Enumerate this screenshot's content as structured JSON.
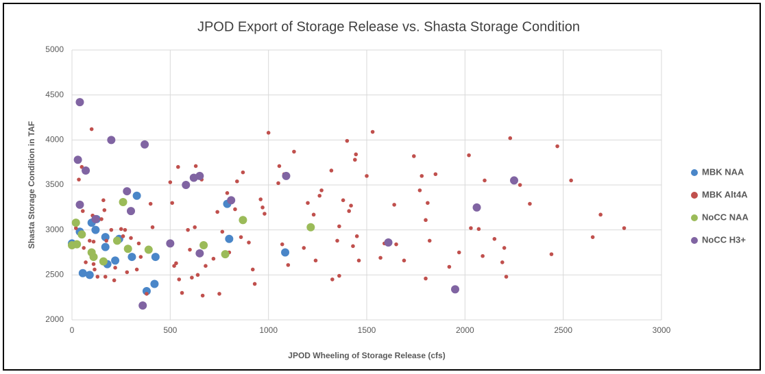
{
  "chart_data": {
    "type": "scatter",
    "title": "JPOD Export of Storage Release vs. Shasta Storage Condition",
    "x_label": "JPOD Wheeling of Storage Release (cfs)",
    "y_label": "Shasta Storage Condition in TAF",
    "xlim": [
      0,
      3000
    ],
    "xticks": [
      0,
      500,
      1000,
      1500,
      2000,
      2500,
      3000
    ],
    "ylim": [
      2000,
      5000
    ],
    "yticks": [
      2000,
      2500,
      3000,
      3500,
      4000,
      4500,
      5000
    ],
    "grid": true,
    "legend": "right",
    "series": [
      {
        "name": "MBK NAA",
        "color": "#4a86c8",
        "marker_radius": 6,
        "x": [
          0,
          40,
          55,
          90,
          100,
          120,
          125,
          170,
          170,
          180,
          220,
          240,
          305,
          330,
          380,
          420,
          425,
          790,
          800,
          1085
        ],
        "values": [
          2850,
          2980,
          2520,
          2500,
          3080,
          3000,
          3120,
          2920,
          2810,
          2620,
          2660,
          2900,
          2700,
          3380,
          2320,
          2400,
          2700,
          3290,
          2900,
          2750
        ]
      },
      {
        "name": "MBK Alt4A",
        "color": "#c0504d",
        "marker_radius": 2.8,
        "x": [
          20,
          35,
          50,
          55,
          60,
          70,
          90,
          100,
          105,
          110,
          110,
          115,
          130,
          150,
          160,
          165,
          170,
          175,
          200,
          215,
          220,
          250,
          260,
          270,
          280,
          300,
          330,
          340,
          350,
          380,
          400,
          410,
          500,
          510,
          520,
          530,
          540,
          545,
          560,
          590,
          600,
          610,
          625,
          630,
          640,
          660,
          665,
          680,
          720,
          740,
          750,
          765,
          790,
          800,
          830,
          840,
          860,
          870,
          900,
          920,
          930,
          960,
          970,
          980,
          1000,
          1050,
          1055,
          1070,
          1080,
          1100,
          1130,
          1180,
          1200,
          1230,
          1240,
          1260,
          1270,
          1320,
          1325,
          1350,
          1360,
          1360,
          1380,
          1400,
          1410,
          1420,
          1430,
          1440,
          1445,
          1450,
          1460,
          1500,
          1530,
          1570,
          1590,
          1640,
          1650,
          1690,
          1740,
          1770,
          1780,
          1800,
          1800,
          1810,
          1820,
          1850,
          1920,
          1970,
          2020,
          2030,
          2070,
          2090,
          2100,
          2150,
          2190,
          2200,
          2210,
          2230,
          2280,
          2330,
          2440,
          2470,
          2540,
          2650,
          2690,
          2810
        ],
        "values": [
          3020,
          3560,
          3700,
          3210,
          2800,
          2640,
          2880,
          4120,
          3160,
          2870,
          2620,
          2560,
          2480,
          3120,
          3330,
          3220,
          2480,
          2880,
          3000,
          2440,
          2580,
          3010,
          2930,
          3000,
          2530,
          2910,
          2560,
          2850,
          2700,
          2290,
          3290,
          3030,
          3530,
          3300,
          2600,
          2630,
          3700,
          2450,
          2300,
          3000,
          2780,
          2470,
          3030,
          3710,
          2500,
          3560,
          2270,
          2600,
          2680,
          3200,
          2290,
          2980,
          3410,
          2750,
          3230,
          3540,
          2920,
          3640,
          2860,
          2560,
          2400,
          3340,
          3250,
          3180,
          4080,
          3520,
          3710,
          2840,
          3620,
          2610,
          3870,
          2800,
          3300,
          3170,
          2660,
          3380,
          3440,
          3660,
          2450,
          2880,
          2490,
          3040,
          3330,
          3990,
          3210,
          3270,
          2820,
          3780,
          3840,
          2930,
          2660,
          3600,
          4090,
          2690,
          2850,
          3280,
          2840,
          2660,
          3820,
          3440,
          3600,
          2460,
          3110,
          3300,
          2880,
          3620,
          2590,
          2750,
          3830,
          3020,
          3010,
          2710,
          3550,
          2900,
          2640,
          2800,
          2480,
          4020,
          3500,
          3290,
          2730,
          3930,
          3550,
          2920,
          3170,
          3020
        ]
      },
      {
        "name": "NoCC NAA",
        "color": "#9bbb59",
        "marker_radius": 6,
        "x": [
          0,
          20,
          25,
          50,
          100,
          110,
          160,
          230,
          260,
          285,
          390,
          670,
          780,
          870,
          1215
        ],
        "values": [
          2830,
          3080,
          2840,
          2950,
          2750,
          2700,
          2650,
          2880,
          3310,
          2790,
          2780,
          2830,
          2730,
          3110,
          3030
        ]
      },
      {
        "name": "NoCC H3+",
        "color": "#8064a2",
        "marker_radius": 6,
        "x": [
          40,
          30,
          70,
          40,
          200,
          370,
          280,
          300,
          120,
          360,
          500,
          580,
          620,
          650,
          650,
          810,
          1090,
          1610,
          1950,
          2060,
          2250
        ],
        "values": [
          4420,
          3780,
          3660,
          3280,
          4000,
          3950,
          3430,
          3210,
          3120,
          2160,
          2850,
          3500,
          3580,
          3600,
          2740,
          3330,
          3600,
          2860,
          2340,
          3250,
          3550
        ]
      }
    ]
  }
}
